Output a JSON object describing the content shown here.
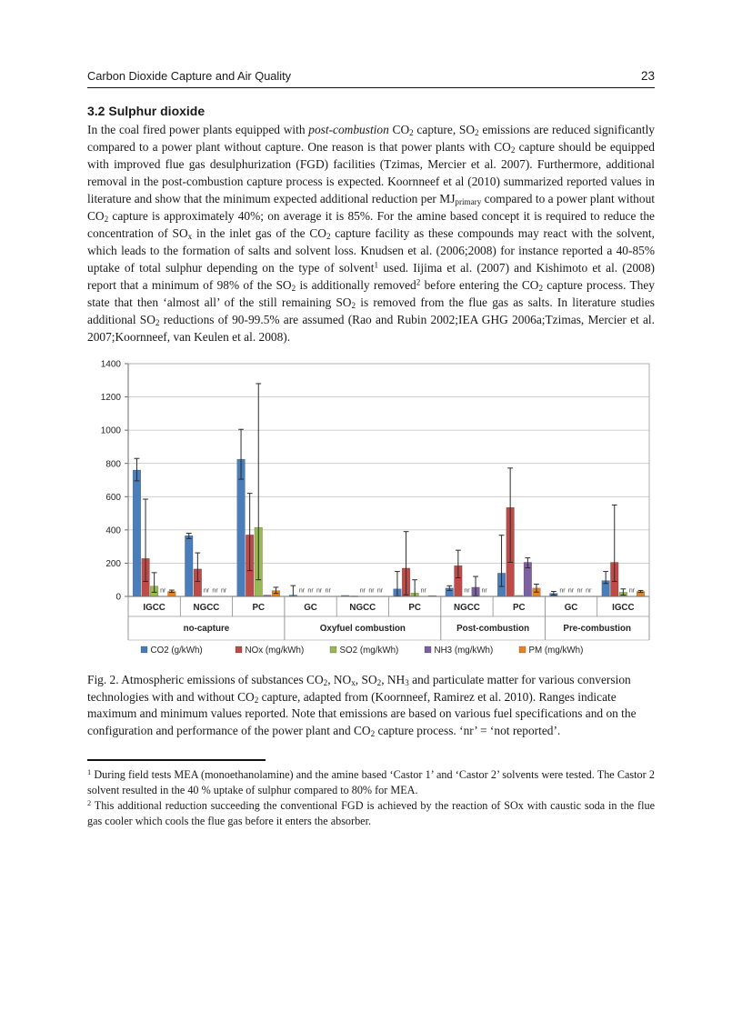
{
  "header": {
    "title": "Carbon Dioxide Capture and Air Quality",
    "page_number": "23"
  },
  "section": {
    "heading": "3.2 Sulphur dioxide",
    "body": [
      {
        "t": "In the coal fired power plants equipped with "
      },
      {
        "t": "post-combustion",
        "f": "i"
      },
      {
        "t": " CO"
      },
      {
        "t": "2",
        "f": "sub"
      },
      {
        "t": " capture, SO"
      },
      {
        "t": "2",
        "f": "sub"
      },
      {
        "t": " emissions are reduced significantly compared to a power plant without capture. One reason is that power plants with CO"
      },
      {
        "t": "2",
        "f": "sub"
      },
      {
        "t": " capture should be equipped with improved flue gas desulphurization (FGD) facilities (Tzimas, Mercier et al. 2007). Furthermore, additional removal in the post-combustion capture process is expected. Koornneef et al (2010) summarized reported values in literature and show that the minimum expected additional reduction per MJ"
      },
      {
        "t": "primary",
        "f": "sub"
      },
      {
        "t": " compared to a power plant without CO"
      },
      {
        "t": "2",
        "f": "sub"
      },
      {
        "t": " capture is approximately 40%; on average it is 85%. For the amine based concept it is required to reduce the concentration of SO"
      },
      {
        "t": "x",
        "f": "sub"
      },
      {
        "t": " in the inlet gas of the CO"
      },
      {
        "t": "2",
        "f": "sub"
      },
      {
        "t": " capture facility as these compounds may react with the solvent, which leads to the formation of salts and solvent loss. Knudsen et al. (2006;2008) for instance reported a 40-85% uptake of total sulphur depending on the type of solvent"
      },
      {
        "t": "1",
        "f": "sup"
      },
      {
        "t": " used. Iijima et al. (2007) and Kishimoto et al. (2008) report that a minimum of 98% of the SO"
      },
      {
        "t": "2",
        "f": "sub"
      },
      {
        "t": " is additionally removed"
      },
      {
        "t": "2",
        "f": "sup"
      },
      {
        "t": " before entering the CO"
      },
      {
        "t": "2",
        "f": "sub"
      },
      {
        "t": " capture process. They state that then ‘almost all’ of the still remaining SO"
      },
      {
        "t": "2",
        "f": "sub"
      },
      {
        "t": " is removed from the flue gas as salts. In literature studies additional SO"
      },
      {
        "t": "2",
        "f": "sub"
      },
      {
        "t": " reductions of 90-99.5% are assumed (Rao and Rubin 2002;IEA GHG 2006a;Tzimas, Mercier et al. 2007;Koornneef, van Keulen et al. 2008)."
      }
    ]
  },
  "chart_data": {
    "type": "bar",
    "title": "",
    "xlabel": "",
    "ylabel": "",
    "ylim": [
      0,
      1400
    ],
    "yticks": [
      0,
      200,
      400,
      600,
      800,
      1000,
      1200,
      1400
    ],
    "grid": true,
    "legend_position": "bottom",
    "nr_label": "nr",
    "series": [
      {
        "name": "CO2 (g/kWh)",
        "color": "#4a7ebb"
      },
      {
        "name": "NOx (mg/kWh)",
        "color": "#be4b48"
      },
      {
        "name": "SO2 (mg/kWh)",
        "color": "#98b954"
      },
      {
        "name": "NH3 (mg/kWh)",
        "color": "#7e61a1"
      },
      {
        "name": "PM (mg/kWh)",
        "color": "#e58427"
      }
    ],
    "groups": [
      {
        "label": "no-capture",
        "cells": [
          {
            "label": "IGCC",
            "bars": [
              {
                "v": 760,
                "lo": 695,
                "hi": 830
              },
              {
                "v": 228,
                "lo": 90,
                "hi": 585
              },
              {
                "v": 62,
                "lo": 25,
                "hi": 143
              },
              "nr",
              {
                "v": 30,
                "lo": 24,
                "hi": 38
              }
            ]
          },
          {
            "label": "NGCC",
            "bars": [
              {
                "v": 365,
                "lo": 348,
                "hi": 380
              },
              {
                "v": 165,
                "lo": 90,
                "hi": 262
              },
              "nr",
              "nr",
              "nr"
            ]
          },
          {
            "label": "PC",
            "bars": [
              {
                "v": 825,
                "lo": 705,
                "hi": 1005
              },
              {
                "v": 370,
                "lo": 155,
                "hi": 620
              },
              {
                "v": 415,
                "lo": 100,
                "hi": 1280
              },
              {
                "v": 8
              },
              {
                "v": 35,
                "lo": 18,
                "hi": 55
              }
            ]
          }
        ]
      },
      {
        "label": "Oxyfuel combustion",
        "cells": [
          {
            "label": "GC",
            "bars": [
              {
                "v": 8,
                "lo": 0,
                "hi": 65
              },
              "nr",
              "nr",
              "nr",
              "nr"
            ]
          },
          {
            "label": "NGCC",
            "bars": [
              {
                "v": 6
              },
              {
                "v": 3
              },
              "nr",
              "nr",
              "nr"
            ]
          },
          {
            "label": "PC",
            "bars": [
              {
                "v": 45,
                "lo": 2,
                "hi": 150
              },
              {
                "v": 170,
                "lo": 10,
                "hi": 390
              },
              {
                "v": 20,
                "lo": 0,
                "hi": 100
              },
              "nr",
              {
                "v": 5
              }
            ]
          }
        ]
      },
      {
        "label": "Post-combustion",
        "cells": [
          {
            "label": "NGCC",
            "bars": [
              {
                "v": 50,
                "lo": 36,
                "hi": 64
              },
              {
                "v": 185,
                "lo": 112,
                "hi": 278
              },
              "nr",
              {
                "v": 55,
                "lo": 3,
                "hi": 120
              },
              "nr"
            ]
          },
          {
            "label": "PC",
            "bars": [
              {
                "v": 140,
                "lo": 60,
                "hi": 368
              },
              {
                "v": 535,
                "lo": 205,
                "hi": 772
              },
              {
                "v": 6
              },
              {
                "v": 205,
                "lo": 172,
                "hi": 232
              },
              {
                "v": 50,
                "lo": 26,
                "hi": 74
              }
            ]
          }
        ]
      },
      {
        "label": "Pre-combustion",
        "cells": [
          {
            "label": "GC",
            "bars": [
              {
                "v": 18,
                "lo": 8,
                "hi": 30
              },
              "nr",
              "nr",
              "nr",
              "nr"
            ]
          },
          {
            "label": "IGCC",
            "bars": [
              {
                "v": 95,
                "lo": 78,
                "hi": 150
              },
              {
                "v": 205,
                "lo": 90,
                "hi": 550
              },
              {
                "v": 25,
                "lo": 8,
                "hi": 45
              },
              "nr",
              {
                "v": 30,
                "lo": 24,
                "hi": 36
              }
            ]
          }
        ]
      }
    ]
  },
  "figure": {
    "caption": [
      {
        "t": "Fig. 2. Atmospheric emissions of substances CO"
      },
      {
        "t": "2",
        "f": "sub"
      },
      {
        "t": ", NO"
      },
      {
        "t": "x",
        "f": "sub"
      },
      {
        "t": ", SO"
      },
      {
        "t": "2",
        "f": "sub"
      },
      {
        "t": ", NH"
      },
      {
        "t": "3",
        "f": "sub"
      },
      {
        "t": " and particulate matter for various conversion technologies with and without CO"
      },
      {
        "t": "2",
        "f": "sub"
      },
      {
        "t": " capture, adapted from (Koornneef, Ramirez et al. 2010). Ranges indicate maximum and minimum values reported. Note that emissions are based on various fuel specifications and on the configuration and performance of the power plant and CO"
      },
      {
        "t": "2",
        "f": "sub"
      },
      {
        "t": " capture process. ‘nr’ = ‘not reported’."
      }
    ]
  },
  "footnotes": [
    [
      {
        "t": "1",
        "f": "sup"
      },
      {
        "t": " During field tests MEA (monoethanolamine) and the amine based ‘Castor 1’ and ‘Castor 2’ solvents were tested. The Castor 2 solvent resulted in the 40 % uptake of sulphur compared to 80% for MEA."
      }
    ],
    [
      {
        "t": "2",
        "f": "sup"
      },
      {
        "t": " This additional reduction succeeding the conventional FGD is achieved by the reaction of SOx with caustic soda in the flue gas cooler which cools the flue gas before it enters the absorber."
      }
    ]
  ]
}
